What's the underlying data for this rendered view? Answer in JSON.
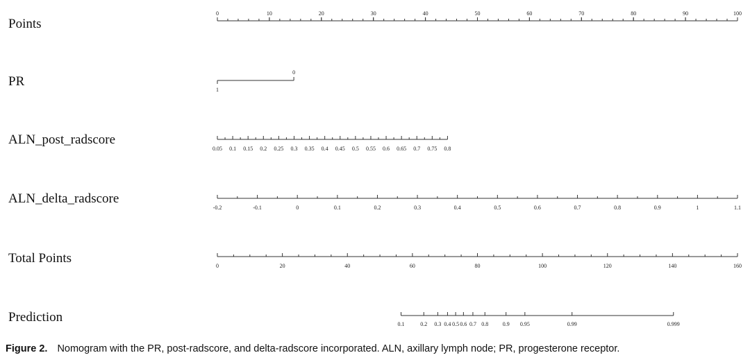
{
  "chart_data": {
    "type": "nomogram",
    "rows": [
      {
        "name": "Points",
        "scale": [
          0,
          100
        ],
        "ticks": [
          {
            "value": 0,
            "label": "0"
          },
          {
            "value": 10,
            "label": "10"
          },
          {
            "value": 20,
            "label": "20"
          },
          {
            "value": 30,
            "label": "30"
          },
          {
            "value": 40,
            "label": "40"
          },
          {
            "value": 50,
            "label": "50"
          },
          {
            "value": 60,
            "label": "60"
          },
          {
            "value": 70,
            "label": "70"
          },
          {
            "value": 80,
            "label": "80"
          },
          {
            "value": 90,
            "label": "90"
          },
          {
            "value": 100,
            "label": "100"
          }
        ]
      },
      {
        "name": "PR",
        "ticks": [
          {
            "value": 1,
            "points": 0,
            "label": "1"
          },
          {
            "value": 0,
            "points": 14.7,
            "label": "0"
          }
        ]
      },
      {
        "name": "ALN_post_radscore",
        "ticks": [
          {
            "value": 0.05,
            "points": 0,
            "label": "0.05"
          },
          {
            "value": 0.1,
            "points": 2.95,
            "label": "0.1"
          },
          {
            "value": 0.15,
            "points": 5.9,
            "label": "0.15"
          },
          {
            "value": 0.2,
            "points": 8.85,
            "label": "0.2"
          },
          {
            "value": 0.25,
            "points": 11.8,
            "label": "0.25"
          },
          {
            "value": 0.3,
            "points": 14.75,
            "label": "0.3"
          },
          {
            "value": 0.35,
            "points": 17.7,
            "label": "0.35"
          },
          {
            "value": 0.4,
            "points": 20.65,
            "label": "0.4"
          },
          {
            "value": 0.45,
            "points": 23.6,
            "label": "0.45"
          },
          {
            "value": 0.5,
            "points": 26.55,
            "label": "0.5"
          },
          {
            "value": 0.55,
            "points": 29.5,
            "label": "0.55"
          },
          {
            "value": 0.6,
            "points": 32.45,
            "label": "0.6"
          },
          {
            "value": 0.65,
            "points": 35.4,
            "label": "0.65"
          },
          {
            "value": 0.7,
            "points": 38.35,
            "label": "0.7"
          },
          {
            "value": 0.75,
            "points": 41.3,
            "label": "0.75"
          },
          {
            "value": 0.8,
            "points": 44.25,
            "label": "0.8"
          }
        ]
      },
      {
        "name": "ALN_delta_radscore",
        "ticks": [
          {
            "value": -0.2,
            "points": 0,
            "label": "-0.2"
          },
          {
            "value": -0.1,
            "points": 7.69,
            "label": "-0.1"
          },
          {
            "value": 0,
            "points": 15.38,
            "label": "0"
          },
          {
            "value": 0.1,
            "points": 23.08,
            "label": "0.1"
          },
          {
            "value": 0.2,
            "points": 30.77,
            "label": "0.2"
          },
          {
            "value": 0.3,
            "points": 38.46,
            "label": "0.3"
          },
          {
            "value": 0.4,
            "points": 46.15,
            "label": "0.4"
          },
          {
            "value": 0.5,
            "points": 53.85,
            "label": "0.5"
          },
          {
            "value": 0.6,
            "points": 61.54,
            "label": "0.6"
          },
          {
            "value": 0.7,
            "points": 69.23,
            "label": "0.7"
          },
          {
            "value": 0.8,
            "points": 76.92,
            "label": "0.8"
          },
          {
            "value": 0.9,
            "points": 84.62,
            "label": "0.9"
          },
          {
            "value": 1,
            "points": 92.31,
            "label": "1"
          },
          {
            "value": 1.1,
            "points": 100,
            "label": "1.1"
          }
        ]
      },
      {
        "name": "Total Points",
        "scale": [
          0,
          160
        ],
        "ticks": [
          {
            "value": 0,
            "label": "0"
          },
          {
            "value": 20,
            "label": "20"
          },
          {
            "value": 40,
            "label": "40"
          },
          {
            "value": 60,
            "label": "60"
          },
          {
            "value": 80,
            "label": "80"
          },
          {
            "value": 100,
            "label": "100"
          },
          {
            "value": 120,
            "label": "120"
          },
          {
            "value": 140,
            "label": "140"
          },
          {
            "value": 160,
            "label": "160"
          }
        ]
      },
      {
        "name": "Prediction",
        "ticks": [
          {
            "value": 0.1,
            "total_points": 56.5,
            "label": "0.1"
          },
          {
            "value": 0.2,
            "total_points": 63.5,
            "label": "0.2"
          },
          {
            "value": 0.3,
            "total_points": 67.8,
            "label": "0.3"
          },
          {
            "value": 0.4,
            "total_points": 70.8,
            "label": "0.4"
          },
          {
            "value": 0.5,
            "total_points": 73.3,
            "label": "0.5"
          },
          {
            "value": 0.6,
            "total_points": 75.7,
            "label": "0.6"
          },
          {
            "value": 0.7,
            "total_points": 78.6,
            "label": "0.7"
          },
          {
            "value": 0.8,
            "total_points": 82.3,
            "label": "0.8"
          },
          {
            "value": 0.9,
            "total_points": 88.8,
            "label": "0.9"
          },
          {
            "value": 0.95,
            "total_points": 94.6,
            "label": "0.95"
          },
          {
            "value": 0.99,
            "total_points": 109.1,
            "label": "0.99"
          },
          {
            "value": 0.999,
            "total_points": 140.3,
            "label": "0.999"
          }
        ]
      }
    ]
  },
  "caption": {
    "lead": "Figure 2.",
    "text": "Nomogram with the PR, post-radscore, and delta-radscore incorporated. ALN, axillary lymph node; PR, progesterone receptor."
  }
}
